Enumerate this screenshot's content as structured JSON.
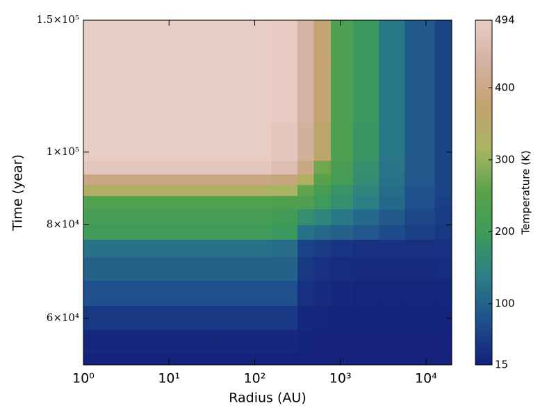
{
  "chart_data": {
    "type": "heatmap",
    "x_label": "Radius (AU)",
    "y_label": "Time (year)",
    "colorbar_label": "Temperature (K)",
    "xscale": "log",
    "yscale": "log",
    "x": [
      1,
      10,
      100,
      250,
      400,
      600,
      1000,
      2000,
      4000,
      8000,
      20000
    ],
    "y": [
      52000,
      56000,
      60000,
      65000,
      70000,
      75000,
      78000,
      82000,
      86000,
      89000,
      92000,
      95000,
      100000,
      120000,
      150000
    ],
    "z": [
      [
        18,
        18,
        18,
        18,
        18,
        18,
        18,
        18,
        18,
        18,
        18
      ],
      [
        25,
        25,
        25,
        25,
        20,
        18,
        18,
        18,
        18,
        18,
        18
      ],
      [
        45,
        45,
        45,
        45,
        25,
        22,
        20,
        20,
        20,
        20,
        20
      ],
      [
        75,
        75,
        75,
        75,
        35,
        28,
        25,
        22,
        22,
        22,
        22
      ],
      [
        100,
        100,
        100,
        100,
        45,
        35,
        30,
        28,
        28,
        28,
        30
      ],
      [
        120,
        120,
        120,
        115,
        60,
        50,
        40,
        35,
        35,
        35,
        38
      ],
      [
        200,
        200,
        200,
        190,
        120,
        110,
        100,
        85,
        70,
        55,
        45
      ],
      [
        215,
        215,
        215,
        205,
        170,
        150,
        130,
        110,
        90,
        65,
        50
      ],
      [
        240,
        240,
        240,
        235,
        230,
        200,
        170,
        140,
        110,
        75,
        55
      ],
      [
        330,
        330,
        330,
        320,
        260,
        220,
        180,
        150,
        115,
        80,
        58
      ],
      [
        400,
        400,
        400,
        390,
        330,
        250,
        210,
        165,
        120,
        85,
        60
      ],
      [
        480,
        480,
        480,
        460,
        400,
        270,
        220,
        170,
        125,
        88,
        60
      ],
      [
        494,
        494,
        494,
        480,
        430,
        360,
        230,
        185,
        130,
        90,
        62
      ],
      [
        494,
        494,
        494,
        490,
        440,
        380,
        230,
        190,
        130,
        90,
        62
      ],
      [
        494,
        494,
        494,
        490,
        440,
        380,
        230,
        190,
        130,
        90,
        62
      ]
    ],
    "xlim": [
      1,
      20000
    ],
    "ylim": [
      52000,
      150000
    ],
    "xticks": [
      {
        "value": 1,
        "label": "10⁰"
      },
      {
        "value": 10,
        "label": "10¹"
      },
      {
        "value": 100,
        "label": "10²"
      },
      {
        "value": 1000,
        "label": "10³"
      },
      {
        "value": 10000,
        "label": "10⁴"
      }
    ],
    "yticks": [
      {
        "value": 60000,
        "label": "6×10⁴"
      },
      {
        "value": 80000,
        "label": "8×10⁴"
      },
      {
        "value": 100000,
        "label": "1×10⁵"
      },
      {
        "value": 150000,
        "label": "1.5×10⁵"
      }
    ],
    "clim": [
      15,
      494
    ],
    "cticks": [
      15,
      100,
      200,
      300,
      400,
      494
    ],
    "colormap": [
      "#13207a",
      "#1f4f8c",
      "#2a7c88",
      "#3c9a5a",
      "#5aa24a",
      "#a8b463",
      "#c2a26f",
      "#d4b0a0",
      "#e8cdc5"
    ]
  }
}
